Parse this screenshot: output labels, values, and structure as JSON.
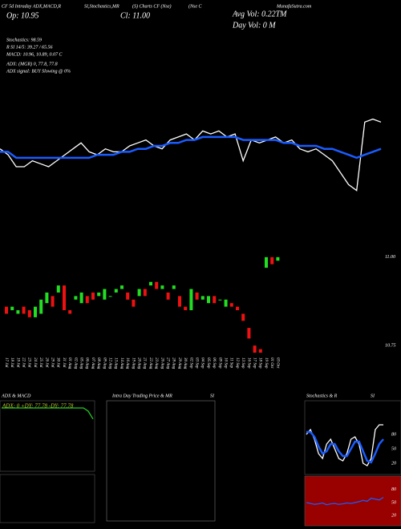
{
  "header": {
    "labels": [
      "CF 5d Intraday ADX,MACD,R",
      "SI,Stochastics,MR",
      "(S) Charts CF (Nse)",
      "(Nse C",
      "MunafaSutra.com"
    ],
    "close": "Cl: 11.00",
    "open": "Op: 10.95",
    "avg_vol": "Avg Vol: 0.22TM",
    "day_vol": "Day Vol: 0  M",
    "stoch": "Stochastics: 98.59",
    "rsi": "R          SI 14/5: 39.27 / 65.56",
    "macd": "MACD: 10.96, 10.89, 0.07 C",
    "adx": "ADX:                          (MGR) 0, 77.8, 77.8",
    "adx_signal": "ADX  signal:                          BUY Slowing @ 0%"
  },
  "chart_data": [
    {
      "type": "line",
      "ylim": [
        10.7,
        11.05
      ],
      "series": [
        {
          "name": "Price",
          "color": "#ffffff",
          "values": [
            10.9,
            10.88,
            10.84,
            10.84,
            10.86,
            10.85,
            10.84,
            10.86,
            10.88,
            10.9,
            10.92,
            10.89,
            10.88,
            10.9,
            10.89,
            10.89,
            10.91,
            10.92,
            10.93,
            10.91,
            10.9,
            10.93,
            10.94,
            10.95,
            10.93,
            10.96,
            10.95,
            10.96,
            10.94,
            10.95,
            10.86,
            10.93,
            10.92,
            10.93,
            10.94,
            10.92,
            10.93,
            10.9,
            10.89,
            10.9,
            10.88,
            10.86,
            10.82,
            10.78,
            10.76,
            10.99,
            11.0,
            10.99
          ]
        },
        {
          "name": "MA",
          "color": "#1a5cff",
          "values": [
            10.89,
            10.89,
            10.87,
            10.87,
            10.87,
            10.87,
            10.87,
            10.87,
            10.87,
            10.87,
            10.87,
            10.87,
            10.88,
            10.88,
            10.88,
            10.89,
            10.89,
            10.9,
            10.9,
            10.91,
            10.91,
            10.92,
            10.92,
            10.93,
            10.93,
            10.94,
            10.94,
            10.94,
            10.94,
            10.94,
            10.93,
            10.93,
            10.93,
            10.93,
            10.93,
            10.92,
            10.92,
            10.91,
            10.91,
            10.91,
            10.9,
            10.9,
            10.89,
            10.88,
            10.87,
            10.88,
            10.89,
            10.9
          ]
        }
      ]
    },
    {
      "type": "candlestick",
      "ylim": [
        10.73,
        11.02
      ],
      "yticks": [
        {
          "value": 11.0,
          "label": "11.00"
        },
        {
          "value": 10.75,
          "label": "10.75"
        }
      ],
      "up_color": "#22dd22",
      "down_color": "#ee1111",
      "categories": [
        "17 Jul",
        "18 Jul",
        "19 Jul",
        "22 Jul",
        "23 Jul",
        "24 Jul",
        "25 Jul",
        "26 Jul",
        "29 Jul",
        "30 Jul",
        "31 Jul",
        "01 Aug",
        "02 Aug",
        "05 Aug",
        "06 Aug",
        "07 Aug",
        "08 Aug",
        "09 Aug",
        "12 Aug",
        "13 Aug",
        "14 Aug",
        "16 Aug",
        "19 Aug",
        "20 Aug",
        "21 Aug",
        "22 Aug",
        "23 Aug",
        "26 Aug",
        "27 Aug",
        "28 Aug",
        "29 Aug",
        "30 Aug",
        "02 Sep",
        "03 Sep",
        "04 Sep",
        "05 Sep",
        "06 Sep",
        "09 Sep",
        "10 Sep",
        "11 Sep",
        "12 Sep",
        "13 Sep",
        "16 Sep",
        "17 Sep",
        "18 Sep",
        "19 Sep",
        "01 Oct",
        "03 Oct"
      ],
      "opens": [
        10.86,
        10.85,
        10.84,
        10.86,
        10.85,
        10.83,
        10.84,
        10.87,
        10.89,
        10.9,
        10.92,
        10.85,
        10.88,
        10.87,
        10.89,
        10.9,
        10.89,
        10.88,
        10.89,
        10.9,
        10.91,
        10.9,
        10.88,
        10.89,
        10.91,
        10.92,
        10.93,
        10.91,
        10.9,
        10.91,
        10.89,
        10.86,
        10.85,
        10.9,
        10.88,
        10.87,
        10.89,
        10.88,
        10.86,
        10.87,
        10.86,
        10.84,
        10.8,
        10.75,
        10.74,
        10.97,
        11.0,
        10.99
      ],
      "closes": [
        10.84,
        10.86,
        10.85,
        10.84,
        10.83,
        10.86,
        10.88,
        10.9,
        10.86,
        10.92,
        10.85,
        10.84,
        10.89,
        10.9,
        10.87,
        10.88,
        10.9,
        10.91,
        10.89,
        10.91,
        10.92,
        10.88,
        10.86,
        10.91,
        10.89,
        10.93,
        10.91,
        10.92,
        10.88,
        10.92,
        10.86,
        10.85,
        10.91,
        10.88,
        10.89,
        10.89,
        10.87,
        10.88,
        10.88,
        10.86,
        10.85,
        10.82,
        10.77,
        10.73,
        10.73,
        11.0,
        10.98,
        11.0
      ]
    },
    {
      "type": "line",
      "title": "ADX  & MACD",
      "subtitle": "ADX: 0   +DY: 77.78   -DY: 77.78",
      "ylim": [
        0,
        100
      ],
      "series": [
        {
          "name": "ADX",
          "color": "#22cc22",
          "values": [
            95,
            95,
            95,
            95,
            95,
            95,
            95,
            95,
            95,
            95,
            95,
            95,
            95,
            95,
            95,
            95,
            95,
            95,
            90,
            77.78
          ]
        }
      ]
    },
    {
      "type": "line",
      "title": "Intra  Day Trading Price  & MR",
      "title2": "SI"
    },
    {
      "type": "line",
      "title": "Stochastics & R",
      "title2": "SI",
      "ylim": [
        0,
        100
      ],
      "yticks": [
        80,
        50,
        20
      ],
      "series": [
        {
          "name": "Stochastic",
          "color": "#ffffff",
          "values": [
            80,
            90,
            70,
            40,
            30,
            60,
            70,
            50,
            30,
            25,
            40,
            70,
            75,
            60,
            20,
            15,
            30,
            90,
            100,
            100
          ]
        },
        {
          "name": "Signal",
          "color": "#1a5cff",
          "values": [
            85,
            85,
            75,
            55,
            40,
            45,
            60,
            60,
            45,
            35,
            35,
            50,
            65,
            65,
            45,
            25,
            22,
            40,
            60,
            70
          ]
        }
      ]
    },
    {
      "type": "line",
      "ylim": [
        0,
        100
      ],
      "yticks": [
        80,
        50,
        20
      ],
      "background": "#990000",
      "series": [
        {
          "name": "RSI",
          "color": "#1a5cff",
          "values": [
            50,
            48,
            46,
            47,
            49,
            45,
            47,
            48,
            46,
            47,
            49,
            48,
            50,
            52,
            55,
            53,
            60,
            58,
            56,
            62
          ]
        }
      ]
    }
  ]
}
